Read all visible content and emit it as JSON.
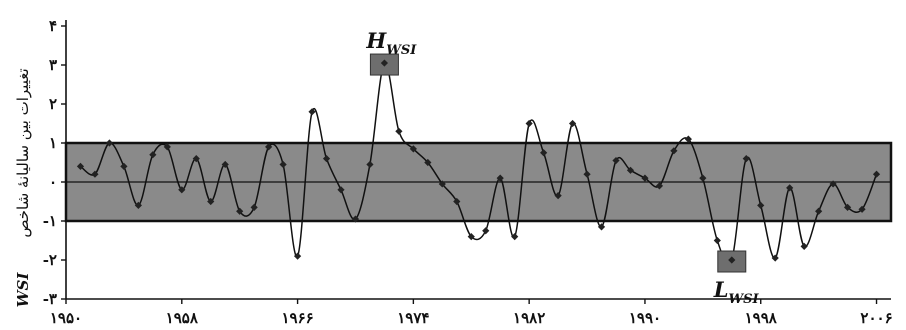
{
  "chart_data": {
    "type": "line",
    "title": "",
    "xlabel": "",
    "ylabel": "تغییرات بین سالیانهٔ شاخص",
    "ylabel_acronym": "WSI",
    "xlim": [
      1950,
      2007
    ],
    "ylim": [
      -3,
      4
    ],
    "x_ticks": [
      1950,
      1958,
      1966,
      1974,
      1982,
      1990,
      1998,
      2006
    ],
    "x_tick_labels": [
      "۱۹۵۰",
      "۱۹۵۸",
      "۱۹۶۶",
      "۱۹۷۴",
      "۱۹۸۲",
      "۱۹۹۰",
      "۱۹۹۸",
      "۲۰۰۶"
    ],
    "y_ticks": [
      -3,
      -2,
      -1,
      0,
      1,
      2,
      3,
      4
    ],
    "y_tick_labels": [
      "-۳",
      "-۲",
      "-۱",
      "۰",
      "۱",
      "۲",
      "۳",
      "۴"
    ],
    "band": {
      "from": -1,
      "to": 1,
      "color": "#8a8a8a"
    },
    "colors": {
      "line": "#111111",
      "marker": "#222222",
      "band": "#8a8a8a",
      "annotation_box": "#6e6e6e"
    },
    "annotations": [
      {
        "main": "H",
        "sub": "WSI",
        "x": 1972,
        "y": 3.05
      },
      {
        "main": "L",
        "sub": "WSI",
        "x": 1996,
        "y": -2.0
      }
    ],
    "series": [
      {
        "x": [
          1951,
          1952,
          1953,
          1954,
          1955,
          1956,
          1957,
          1958,
          1959,
          1960,
          1961,
          1962,
          1963,
          1964,
          1965,
          1966,
          1967,
          1968,
          1969,
          1970,
          1971,
          1972,
          1973,
          1974,
          1975,
          1976,
          1977,
          1978,
          1979,
          1980,
          1981,
          1982,
          1983,
          1984,
          1985,
          1986,
          1987,
          1988,
          1989,
          1990,
          1991,
          1992,
          1993,
          1994,
          1995,
          1996,
          1997,
          1998,
          1999,
          2000,
          2001,
          2002,
          2003,
          2004,
          2005,
          2006
        ],
        "y": [
          0.4,
          0.2,
          1.0,
          0.4,
          -0.6,
          0.7,
          0.9,
          -0.2,
          0.6,
          -0.5,
          0.45,
          -0.75,
          -0.65,
          0.9,
          0.45,
          -1.9,
          1.8,
          0.6,
          -0.2,
          -0.95,
          0.45,
          3.05,
          1.3,
          0.85,
          0.5,
          -0.05,
          -0.5,
          -1.4,
          -1.25,
          0.1,
          -1.4,
          1.5,
          0.75,
          -0.35,
          1.5,
          0.2,
          -1.15,
          0.55,
          0.3,
          0.1,
          -0.1,
          0.8,
          1.1,
          0.1,
          -1.5,
          -2.0,
          0.6,
          -0.6,
          -1.95,
          -0.15,
          -1.65,
          -0.75,
          -0.05,
          -0.65,
          -0.7,
          0.2
        ]
      }
    ]
  }
}
